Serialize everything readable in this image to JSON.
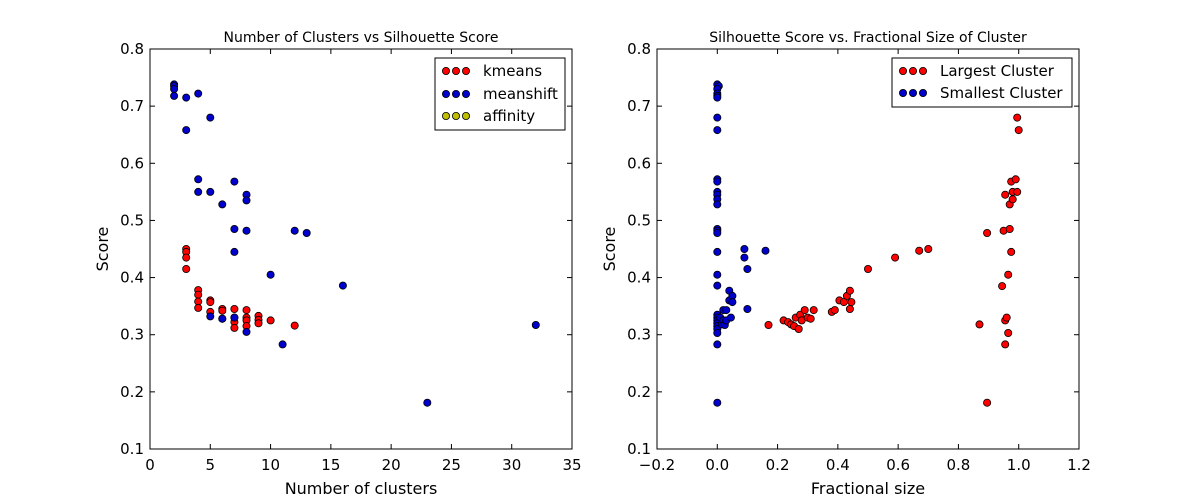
{
  "chart_data": [
    {
      "type": "scatter",
      "title": "Number of Clusters vs Silhouette Score",
      "xlabel": "Number of clusters",
      "ylabel": "Score",
      "xlim": [
        0,
        35
      ],
      "ylim": [
        0.1,
        0.8
      ],
      "xticks": [
        "0",
        "5",
        "10",
        "15",
        "20",
        "25",
        "30",
        "35"
      ],
      "yticks": [
        "0.1",
        "0.2",
        "0.3",
        "0.4",
        "0.5",
        "0.6",
        "0.7",
        "0.8"
      ],
      "grid": false,
      "legend": "top-right",
      "series": [
        {
          "name": "kmeans",
          "color": "#ff0000",
          "points": [
            [
              3,
              0.45
            ],
            [
              3,
              0.445
            ],
            [
              3,
              0.435
            ],
            [
              3,
              0.415
            ],
            [
              4,
              0.378
            ],
            [
              4,
              0.37
            ],
            [
              4,
              0.358
            ],
            [
              4,
              0.347
            ],
            [
              5,
              0.36
            ],
            [
              5,
              0.357
            ],
            [
              5,
              0.34
            ],
            [
              6,
              0.345
            ],
            [
              6,
              0.342
            ],
            [
              6,
              0.328
            ],
            [
              7,
              0.345
            ],
            [
              7,
              0.33
            ],
            [
              7,
              0.322
            ],
            [
              7,
              0.312
            ],
            [
              8,
              0.343
            ],
            [
              8,
              0.33
            ],
            [
              8,
              0.325
            ],
            [
              8,
              0.315
            ],
            [
              9,
              0.333
            ],
            [
              9,
              0.326
            ],
            [
              9,
              0.32
            ],
            [
              10,
              0.325
            ],
            [
              12,
              0.316
            ]
          ]
        },
        {
          "name": "meanshift",
          "color": "#0000cc",
          "points": [
            [
              2,
              0.738
            ],
            [
              2,
              0.735
            ],
            [
              2,
              0.73
            ],
            [
              2,
              0.718
            ],
            [
              3,
              0.715
            ],
            [
              3,
              0.658
            ],
            [
              4,
              0.722
            ],
            [
              4,
              0.572
            ],
            [
              4,
              0.55
            ],
            [
              5,
              0.68
            ],
            [
              5,
              0.55
            ],
            [
              5,
              0.332
            ],
            [
              6,
              0.528
            ],
            [
              6,
              0.328
            ],
            [
              7,
              0.568
            ],
            [
              7,
              0.485
            ],
            [
              7,
              0.445
            ],
            [
              7,
              0.33
            ],
            [
              8,
              0.545
            ],
            [
              8,
              0.535
            ],
            [
              8,
              0.482
            ],
            [
              8,
              0.305
            ],
            [
              10,
              0.405
            ],
            [
              11,
              0.283
            ],
            [
              12,
              0.482
            ],
            [
              13,
              0.478
            ],
            [
              16,
              0.386
            ],
            [
              23,
              0.181
            ],
            [
              32,
              0.317
            ]
          ]
        },
        {
          "name": "affinity",
          "color": "#bfbf00",
          "points": []
        }
      ]
    },
    {
      "type": "scatter",
      "title": "Silhouette Score vs. Fractional Size of Cluster",
      "xlabel": "Fractional size",
      "ylabel": "Score",
      "xlim": [
        -0.2,
        1.2
      ],
      "ylim": [
        0.1,
        0.8
      ],
      "xticks": [
        "−0.2",
        "0.0",
        "0.2",
        "0.4",
        "0.6",
        "0.8",
        "1.0",
        "1.2"
      ],
      "yticks": [
        "0.1",
        "0.2",
        "0.3",
        "0.4",
        "0.5",
        "0.6",
        "0.7",
        "0.8"
      ],
      "grid": false,
      "legend": "top-right",
      "series": [
        {
          "name": "Largest Cluster",
          "color": "#ff0000",
          "points": [
            [
              0.17,
              0.317
            ],
            [
              0.22,
              0.325
            ],
            [
              0.235,
              0.322
            ],
            [
              0.245,
              0.318
            ],
            [
              0.255,
              0.315
            ],
            [
              0.26,
              0.33
            ],
            [
              0.27,
              0.31
            ],
            [
              0.275,
              0.335
            ],
            [
              0.28,
              0.325
            ],
            [
              0.29,
              0.343
            ],
            [
              0.3,
              0.33
            ],
            [
              0.31,
              0.328
            ],
            [
              0.32,
              0.343
            ],
            [
              0.38,
              0.34
            ],
            [
              0.39,
              0.343
            ],
            [
              0.405,
              0.36
            ],
            [
              0.42,
              0.357
            ],
            [
              0.43,
              0.368
            ],
            [
              0.44,
              0.377
            ],
            [
              0.44,
              0.345
            ],
            [
              0.445,
              0.357
            ],
            [
              0.5,
              0.415
            ],
            [
              0.59,
              0.435
            ],
            [
              0.67,
              0.447
            ],
            [
              0.7,
              0.45
            ],
            [
              0.87,
              0.318
            ],
            [
              0.895,
              0.478
            ],
            [
              0.895,
              0.181
            ],
            [
              0.945,
              0.385
            ],
            [
              0.95,
              0.482
            ],
            [
              0.955,
              0.545
            ],
            [
              0.955,
              0.325
            ],
            [
              0.955,
              0.283
            ],
            [
              0.96,
              0.33
            ],
            [
              0.965,
              0.405
            ],
            [
              0.965,
              0.303
            ],
            [
              0.97,
              0.528
            ],
            [
              0.97,
              0.485
            ],
            [
              0.975,
              0.445
            ],
            [
              0.975,
              0.568
            ],
            [
              0.98,
              0.537
            ],
            [
              0.98,
              0.55
            ],
            [
              0.99,
              0.572
            ],
            [
              0.995,
              0.55
            ],
            [
              0.995,
              0.68
            ],
            [
              1.0,
              0.658
            ]
          ]
        },
        {
          "name": "Smallest Cluster",
          "color": "#0000cc",
          "points": [
            [
              0.0,
              0.738
            ],
            [
              0.005,
              0.735
            ],
            [
              0.0,
              0.73
            ],
            [
              0.0,
              0.722
            ],
            [
              0.0,
              0.718
            ],
            [
              0.0,
              0.715
            ],
            [
              0.0,
              0.68
            ],
            [
              0.0,
              0.658
            ],
            [
              0.0,
              0.572
            ],
            [
              0.0,
              0.568
            ],
            [
              0.0,
              0.55
            ],
            [
              0.0,
              0.545
            ],
            [
              0.0,
              0.537
            ],
            [
              0.0,
              0.528
            ],
            [
              0.0,
              0.485
            ],
            [
              0.0,
              0.482
            ],
            [
              0.0,
              0.478
            ],
            [
              0.0,
              0.445
            ],
            [
              0.0,
              0.405
            ],
            [
              0.0,
              0.386
            ],
            [
              0.0,
              0.335
            ],
            [
              0.0,
              0.33
            ],
            [
              0.0,
              0.325
            ],
            [
              0.0,
              0.32
            ],
            [
              0.0,
              0.315
            ],
            [
              0.0,
              0.31
            ],
            [
              0.0,
              0.303
            ],
            [
              0.0,
              0.283
            ],
            [
              0.0,
              0.181
            ],
            [
              0.01,
              0.33
            ],
            [
              0.015,
              0.318
            ],
            [
              0.02,
              0.325
            ],
            [
              0.02,
              0.343
            ],
            [
              0.025,
              0.317
            ],
            [
              0.03,
              0.325
            ],
            [
              0.03,
              0.343
            ],
            [
              0.04,
              0.36
            ],
            [
              0.04,
              0.377
            ],
            [
              0.05,
              0.368
            ],
            [
              0.05,
              0.357
            ],
            [
              0.045,
              0.33
            ],
            [
              0.09,
              0.45
            ],
            [
              0.09,
              0.435
            ],
            [
              0.1,
              0.415
            ],
            [
              0.1,
              0.345
            ],
            [
              0.16,
              0.447
            ]
          ]
        }
      ]
    }
  ]
}
